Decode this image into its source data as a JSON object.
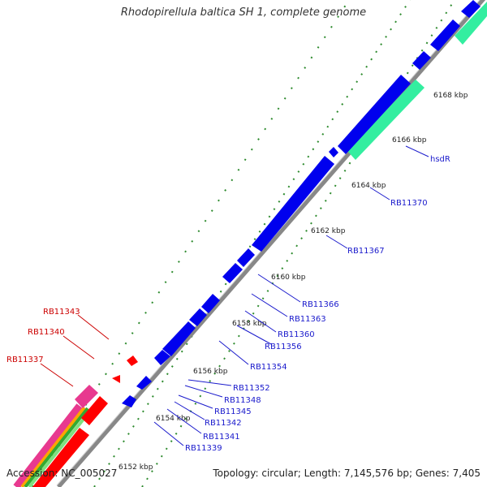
{
  "title": "Rhodopirellula baltica SH 1, complete genome",
  "footer": {
    "accession": "Accession: NC_005027",
    "summary": "Topology: circular; Length: 7,145,576 bp; Genes: 7,405"
  },
  "ticks": [
    "6152 kbp",
    "6154 kbp",
    "6156 kbp",
    "6158 kbp",
    "6160 kbp",
    "6162 kbp",
    "6164 kbp",
    "6166 kbp",
    "6168 kbp"
  ],
  "labels_blue": [
    "RB11339",
    "RB11341",
    "RB11342",
    "RB11345",
    "RB11348",
    "RB11352",
    "RB11354",
    "RB11356",
    "RB11360",
    "RB11363",
    "RB11366",
    "RB11367",
    "RB11370",
    "hsdR"
  ],
  "labels_red": [
    "RB11337",
    "RB11340",
    "RB11343"
  ],
  "colors": {
    "forward_cds": "#0000ee",
    "reverse_cds": "#ff0000",
    "hsdR_feature": "#33eea0",
    "pink_feature": "#e8398f",
    "backbone": "#888888",
    "tick_dots": "#2e8b2e",
    "label_blue": "#1a1acc",
    "label_red": "#cc0000"
  }
}
